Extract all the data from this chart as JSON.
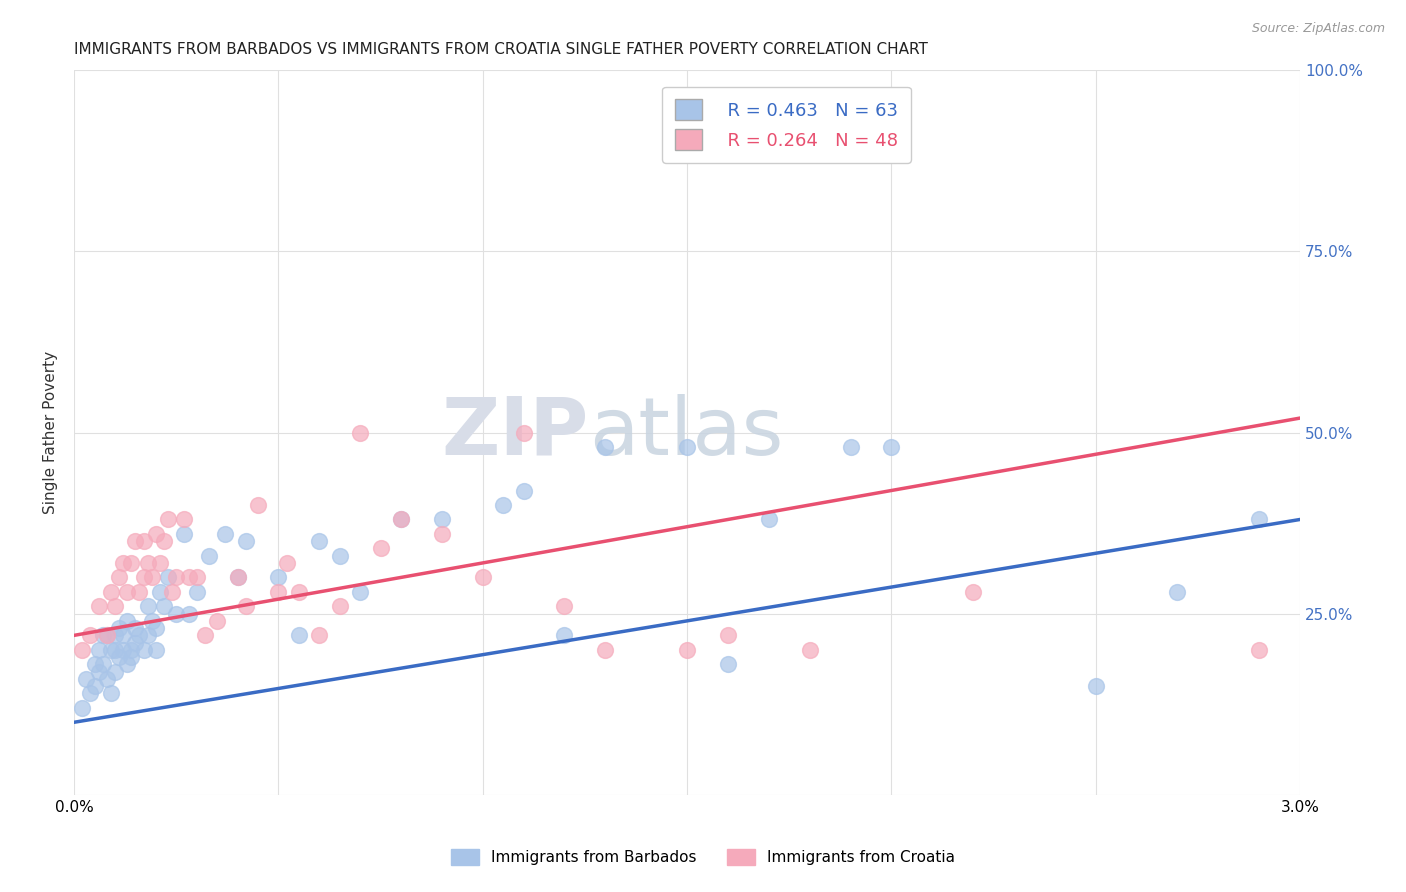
{
  "title": "IMMIGRANTS FROM BARBADOS VS IMMIGRANTS FROM CROATIA SINGLE FATHER POVERTY CORRELATION CHART",
  "source": "Source: ZipAtlas.com",
  "ylabel": "Single Father Poverty",
  "x_min": 0.0,
  "x_max": 3.0,
  "y_min": 0.0,
  "y_max": 100.0,
  "y_ticks": [
    0,
    25,
    50,
    75,
    100
  ],
  "y_tick_labels": [
    "",
    "25.0%",
    "50.0%",
    "75.0%",
    "100.0%"
  ],
  "x_ticks": [
    0.0,
    0.5,
    1.0,
    1.5,
    2.0,
    2.5,
    3.0
  ],
  "x_tick_labels": [
    "0.0%",
    "",
    "",
    "",
    "",
    "",
    "3.0%"
  ],
  "barbados_color": "#a8c4e8",
  "croatia_color": "#f5aabb",
  "barbados_R": 0.463,
  "barbados_N": 63,
  "croatia_R": 0.264,
  "croatia_N": 48,
  "barbados_line_color": "#3a6bc4",
  "croatia_line_color": "#e85070",
  "legend_label_barbados": "Immigrants from Barbados",
  "legend_label_croatia": "Immigrants from Croatia",
  "watermark_zip": "ZIP",
  "watermark_atlas": "atlas",
  "background_color": "#ffffff",
  "grid_color": "#e0e0e0",
  "right_axis_color": "#4472c4",
  "title_fontsize": 11,
  "barbados_x": [
    0.02,
    0.03,
    0.04,
    0.05,
    0.05,
    0.06,
    0.06,
    0.07,
    0.07,
    0.08,
    0.08,
    0.09,
    0.09,
    0.1,
    0.1,
    0.1,
    0.11,
    0.11,
    0.12,
    0.12,
    0.13,
    0.13,
    0.14,
    0.14,
    0.15,
    0.15,
    0.16,
    0.17,
    0.18,
    0.18,
    0.19,
    0.2,
    0.2,
    0.21,
    0.22,
    0.23,
    0.25,
    0.27,
    0.28,
    0.3,
    0.33,
    0.37,
    0.4,
    0.42,
    0.5,
    0.55,
    0.6,
    0.65,
    0.7,
    0.8,
    0.9,
    1.05,
    1.1,
    1.2,
    1.3,
    1.5,
    1.6,
    1.7,
    1.9,
    2.0,
    2.5,
    2.7,
    2.9
  ],
  "barbados_y": [
    12,
    16,
    14,
    18,
    15,
    20,
    17,
    22,
    18,
    16,
    22,
    14,
    20,
    17,
    22,
    20,
    19,
    23,
    20,
    22,
    18,
    24,
    20,
    19,
    23,
    21,
    22,
    20,
    26,
    22,
    24,
    20,
    23,
    28,
    26,
    30,
    25,
    36,
    25,
    28,
    33,
    36,
    30,
    35,
    30,
    22,
    35,
    33,
    28,
    38,
    38,
    40,
    42,
    22,
    48,
    48,
    18,
    38,
    48,
    48,
    15,
    28,
    38
  ],
  "croatia_x": [
    0.02,
    0.04,
    0.06,
    0.08,
    0.09,
    0.1,
    0.11,
    0.12,
    0.13,
    0.14,
    0.15,
    0.16,
    0.17,
    0.17,
    0.18,
    0.19,
    0.2,
    0.21,
    0.22,
    0.23,
    0.24,
    0.25,
    0.27,
    0.28,
    0.3,
    0.32,
    0.35,
    0.4,
    0.42,
    0.45,
    0.5,
    0.52,
    0.55,
    0.6,
    0.65,
    0.7,
    0.75,
    0.8,
    0.9,
    1.0,
    1.1,
    1.2,
    1.3,
    1.5,
    1.6,
    1.8,
    2.2,
    2.9
  ],
  "croatia_y": [
    20,
    22,
    26,
    22,
    28,
    26,
    30,
    32,
    28,
    32,
    35,
    28,
    35,
    30,
    32,
    30,
    36,
    32,
    35,
    38,
    28,
    30,
    38,
    30,
    30,
    22,
    24,
    30,
    26,
    40,
    28,
    32,
    28,
    22,
    26,
    50,
    34,
    38,
    36,
    30,
    50,
    26,
    20,
    20,
    22,
    20,
    28,
    20
  ],
  "barbados_line_y0": 10,
  "barbados_line_y1": 38,
  "croatia_line_y0": 22,
  "croatia_line_y1": 52
}
